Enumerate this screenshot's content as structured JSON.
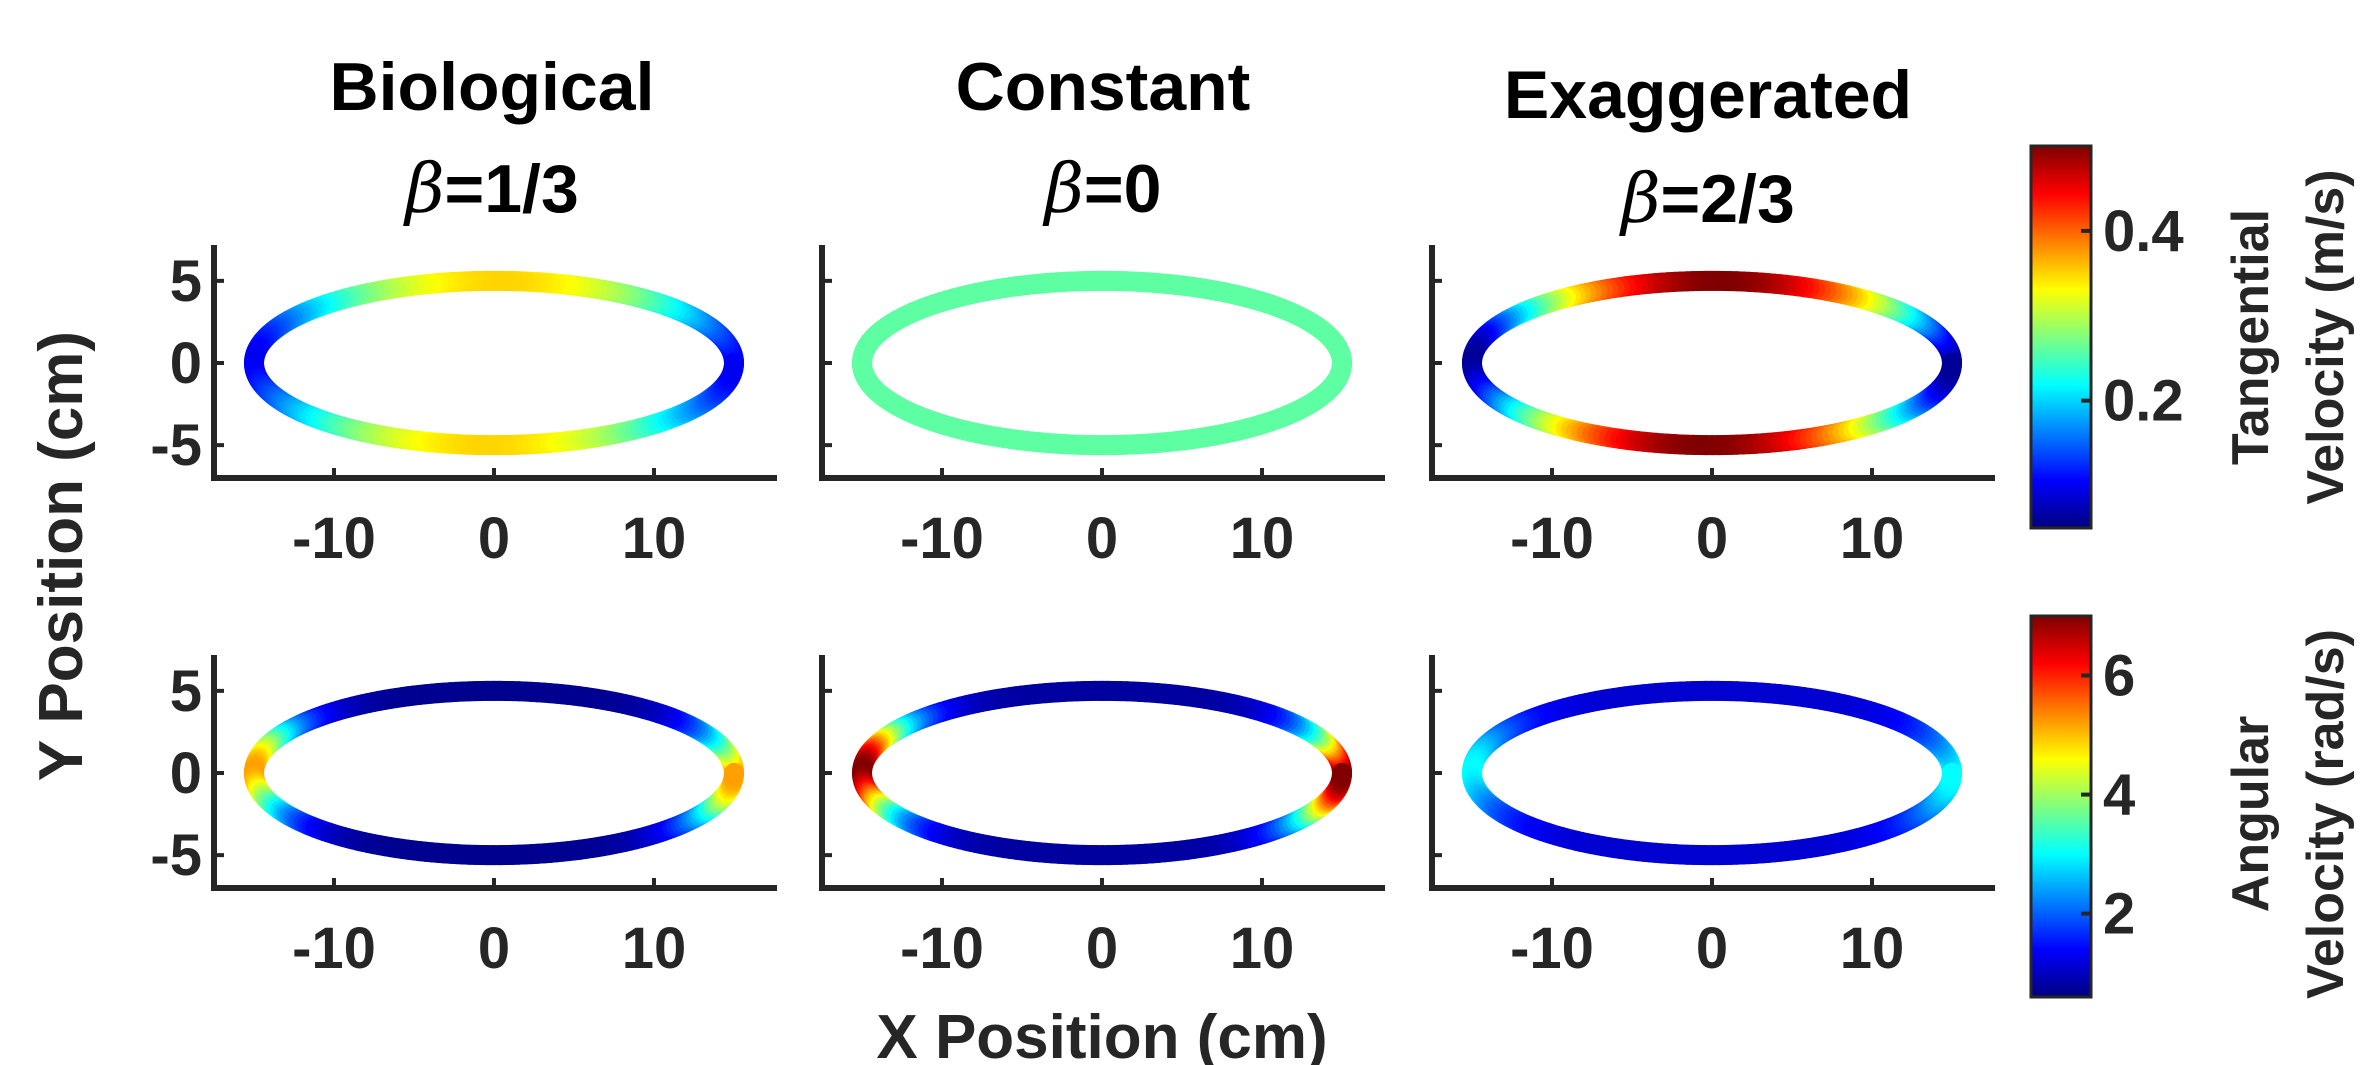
{
  "chart_data": {
    "type": "scatter",
    "description_layout": "2x3 grid of ellipse trajectories colored by velocity",
    "columns": [
      {
        "title": "Biological",
        "subtitle_prefix": "β",
        "subtitle_value": "=1/3",
        "beta": 0.3333
      },
      {
        "title": "Constant",
        "subtitle_prefix": "β",
        "subtitle_value": "=0",
        "beta": 0
      },
      {
        "title": "Exaggerated",
        "subtitle_prefix": "β",
        "subtitle_value": "=2/3",
        "beta": 0.6667
      }
    ],
    "ellipse": {
      "semi_major_cm": 15,
      "semi_minor_cm": 5
    },
    "xlabel": "X Position (cm)",
    "ylabel": "Y Position (cm)",
    "xlim": [
      -17.5,
      17.5
    ],
    "ylim": [
      -7,
      7
    ],
    "xticks": [
      {
        "v": -10,
        "label": "-10"
      },
      {
        "v": 0,
        "label": "0"
      },
      {
        "v": 10,
        "label": "10"
      }
    ],
    "yticks": [
      {
        "v": 5,
        "label": "5"
      },
      {
        "v": 0,
        "label": "0"
      },
      {
        "v": -5,
        "label": "-5"
      }
    ],
    "rows": [
      {
        "quantity": "tangential",
        "colorbar": {
          "label_line1": "Tangential",
          "label_line2": "Velocity (m/s)",
          "range": [
            0.05,
            0.5
          ],
          "ticks": [
            {
              "v": 0.2,
              "label": "0.2"
            },
            {
              "v": 0.4,
              "label": "0.4"
            }
          ]
        },
        "panel_ranges": [
          [
            0.1,
            0.35
          ],
          [
            0.26,
            0.26
          ],
          [
            0.06,
            0.5
          ]
        ]
      },
      {
        "quantity": "angular",
        "colorbar": {
          "label_line1": "Angular",
          "label_line2": "Velocity (rad/s)",
          "range": [
            0.6,
            7
          ],
          "ticks": [
            {
              "v": 2,
              "label": "2"
            },
            {
              "v": 4,
              "label": "4"
            },
            {
              "v": 6,
              "label": "6"
            }
          ]
        },
        "panel_ranges": [
          [
            0.7,
            5.2
          ],
          [
            0.8,
            7.0
          ],
          [
            1.1,
            3.0
          ]
        ]
      }
    ],
    "colormap": "jet",
    "grid": false
  }
}
